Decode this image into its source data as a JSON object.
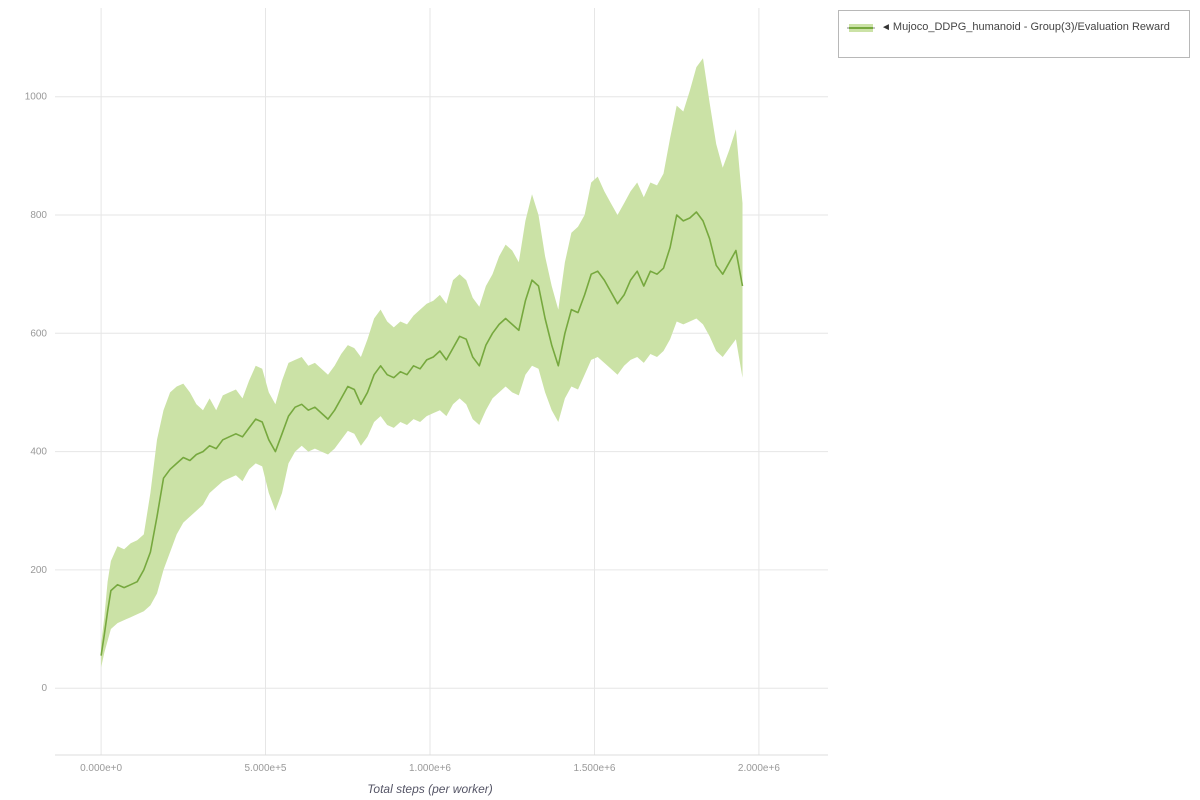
{
  "legend": {
    "collapse_glyph": "◄",
    "label": "Mujoco_DDPG_humanoid - Group(3)/Evaluation Reward"
  },
  "axes": {
    "x_label": "Total steps (per worker)"
  },
  "chart_data": {
    "type": "line",
    "title": "",
    "xlabel": "Total steps (per worker)",
    "ylabel": "",
    "x_unit": "millions of steps",
    "xlim": [
      -0.14,
      2.21
    ],
    "ylim": [
      -113,
      1150
    ],
    "grid": true,
    "legend_position": "top-right-outside",
    "line_color": "#76a83e",
    "band_color": "#cbe2a6",
    "x_ticks": {
      "values": [
        0,
        0.5,
        1.0,
        1.5,
        2.0
      ],
      "labels": [
        "0.000e+0",
        "5.000e+5",
        "1.000e+6",
        "1.500e+6",
        "2.000e+6"
      ]
    },
    "y_ticks": {
      "values": [
        0,
        200,
        400,
        600,
        800,
        1000
      ],
      "labels": [
        "0",
        "200",
        "400",
        "600",
        "800",
        "1000"
      ]
    },
    "series": [
      {
        "name": "Mujoco_DDPG_humanoid - Group(3)/Evaluation Reward",
        "x": [
          0,
          0.01,
          0.02,
          0.03,
          0.05,
          0.07,
          0.09,
          0.11,
          0.13,
          0.15,
          0.17,
          0.19,
          0.21,
          0.23,
          0.25,
          0.27,
          0.29,
          0.31,
          0.33,
          0.35,
          0.37,
          0.39,
          0.41,
          0.43,
          0.45,
          0.47,
          0.49,
          0.51,
          0.53,
          0.55,
          0.57,
          0.59,
          0.61,
          0.63,
          0.65,
          0.67,
          0.69,
          0.71,
          0.73,
          0.75,
          0.77,
          0.79,
          0.81,
          0.83,
          0.85,
          0.87,
          0.89,
          0.91,
          0.93,
          0.95,
          0.97,
          0.99,
          1.01,
          1.03,
          1.05,
          1.07,
          1.09,
          1.11,
          1.13,
          1.15,
          1.17,
          1.19,
          1.21,
          1.23,
          1.25,
          1.27,
          1.29,
          1.31,
          1.33,
          1.35,
          1.37,
          1.39,
          1.41,
          1.43,
          1.45,
          1.47,
          1.49,
          1.51,
          1.53,
          1.55,
          1.57,
          1.59,
          1.61,
          1.63,
          1.65,
          1.67,
          1.69,
          1.71,
          1.73,
          1.75,
          1.77,
          1.79,
          1.81,
          1.83,
          1.85,
          1.87,
          1.89,
          1.91,
          1.93,
          1.95
        ],
        "mean": [
          55,
          90,
          130,
          165,
          175,
          170,
          175,
          180,
          200,
          230,
          290,
          355,
          370,
          380,
          390,
          385,
          395,
          400,
          410,
          405,
          420,
          425,
          430,
          425,
          440,
          455,
          450,
          420,
          400,
          430,
          460,
          475,
          480,
          470,
          475,
          465,
          455,
          470,
          490,
          510,
          505,
          480,
          500,
          530,
          545,
          530,
          525,
          535,
          530,
          545,
          540,
          555,
          560,
          570,
          555,
          575,
          595,
          590,
          560,
          545,
          580,
          600,
          615,
          625,
          615,
          605,
          655,
          690,
          680,
          625,
          580,
          545,
          600,
          640,
          635,
          665,
          700,
          705,
          690,
          670,
          650,
          665,
          690,
          705,
          680,
          705,
          700,
          710,
          745,
          800,
          790,
          795,
          805,
          790,
          760,
          715,
          700,
          720,
          740,
          680
        ],
        "lower": [
          35,
          60,
          80,
          100,
          110,
          115,
          120,
          125,
          130,
          140,
          160,
          200,
          230,
          260,
          280,
          290,
          300,
          310,
          330,
          340,
          350,
          355,
          360,
          350,
          370,
          380,
          375,
          330,
          300,
          330,
          380,
          400,
          410,
          400,
          405,
          400,
          395,
          405,
          420,
          435,
          430,
          410,
          425,
          450,
          460,
          445,
          440,
          450,
          445,
          455,
          450,
          460,
          465,
          470,
          460,
          480,
          490,
          480,
          455,
          445,
          470,
          490,
          500,
          510,
          500,
          495,
          530,
          545,
          540,
          500,
          470,
          450,
          490,
          510,
          505,
          530,
          555,
          560,
          550,
          540,
          530,
          545,
          555,
          560,
          550,
          565,
          560,
          570,
          590,
          620,
          615,
          620,
          625,
          615,
          595,
          570,
          560,
          575,
          590,
          525
        ],
        "upper": [
          75,
          120,
          180,
          215,
          240,
          235,
          245,
          250,
          260,
          330,
          420,
          470,
          500,
          510,
          515,
          500,
          480,
          470,
          490,
          470,
          495,
          500,
          505,
          490,
          520,
          545,
          540,
          500,
          480,
          520,
          550,
          555,
          560,
          545,
          550,
          540,
          530,
          545,
          565,
          580,
          575,
          560,
          590,
          625,
          640,
          620,
          610,
          620,
          615,
          630,
          640,
          650,
          655,
          665,
          650,
          690,
          700,
          690,
          660,
          645,
          680,
          700,
          730,
          750,
          740,
          720,
          790,
          835,
          800,
          730,
          680,
          640,
          720,
          770,
          780,
          800,
          855,
          865,
          840,
          820,
          800,
          820,
          840,
          855,
          830,
          855,
          850,
          870,
          930,
          985,
          975,
          1010,
          1050,
          1065,
          990,
          920,
          880,
          910,
          945,
          820
        ]
      }
    ]
  }
}
